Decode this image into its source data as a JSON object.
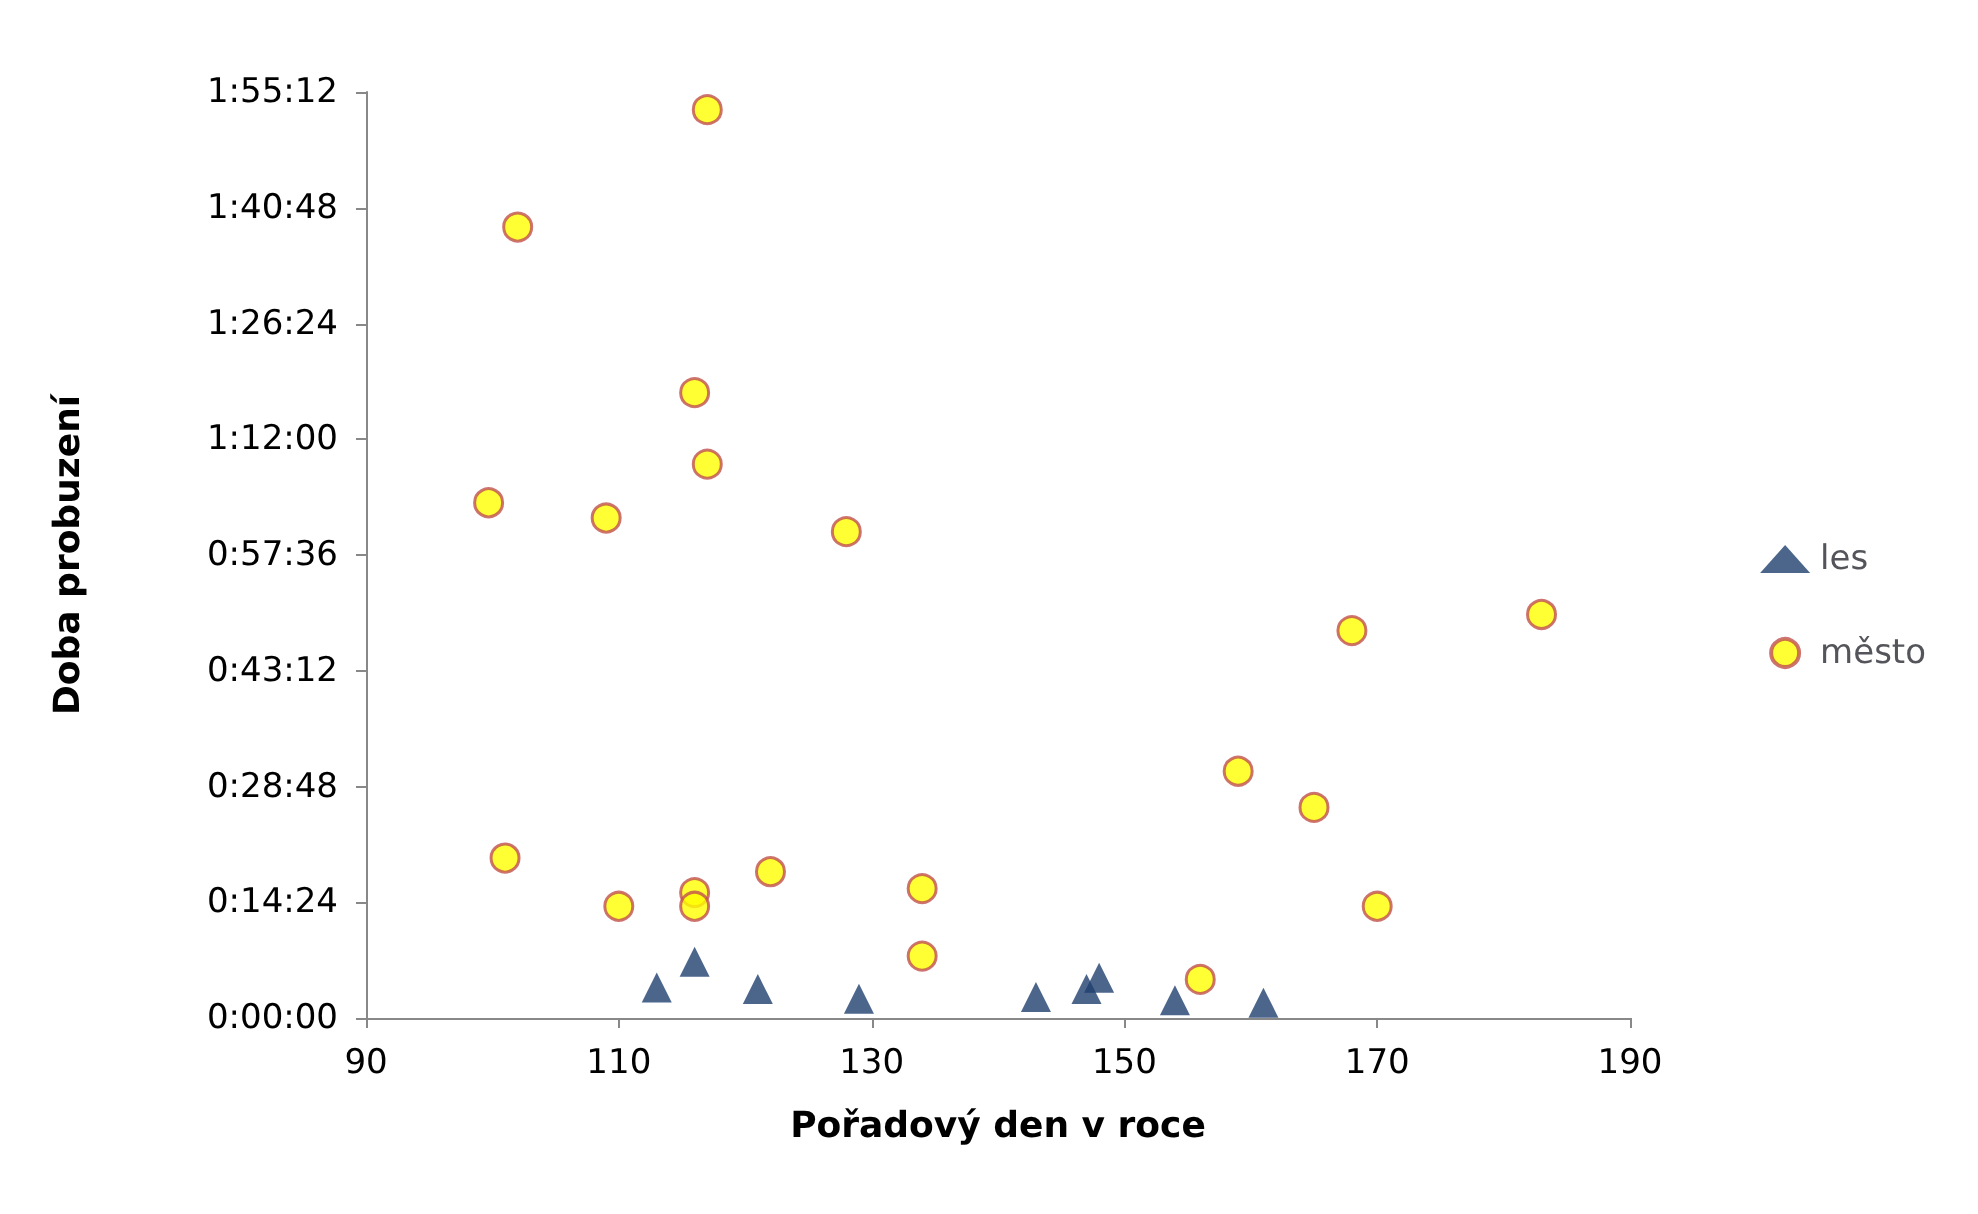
{
  "chart_data": {
    "type": "scatter",
    "xlabel": "Pořadový den v roce",
    "ylabel": "Doba probuzení",
    "xlim": [
      90,
      190
    ],
    "xticks": [
      90,
      110,
      130,
      150,
      170,
      190
    ],
    "ylim": [
      0,
      115.2
    ],
    "yticks": [
      {
        "value": 0,
        "label": "0:00:00"
      },
      {
        "value": 14.4,
        "label": "0:14:24"
      },
      {
        "value": 28.8,
        "label": "0:28:48"
      },
      {
        "value": 43.2,
        "label": "0:43:12"
      },
      {
        "value": 57.6,
        "label": "0:57:36"
      },
      {
        "value": 72,
        "label": "1:12:00"
      },
      {
        "value": 86.4,
        "label": "1:26:24"
      },
      {
        "value": 100.8,
        "label": "1:40:48"
      },
      {
        "value": 115.2,
        "label": "1:55:12"
      }
    ],
    "grid": false,
    "legend": "right",
    "series": [
      {
        "name": "les",
        "color": "#1f3f6e",
        "marker": "triangle",
        "x": [
          113,
          116,
          121,
          129,
          143,
          147,
          148,
          154,
          161
        ],
        "values": [
          3.8,
          7.0,
          3.6,
          2.4,
          2.6,
          3.6,
          5.0,
          2.2,
          1.9
        ]
      },
      {
        "name": "město",
        "color": "#ffff00",
        "marker": "circle",
        "x": [
          117,
          102,
          116,
          117,
          99.7,
          109,
          128,
          168,
          183,
          159,
          165,
          101,
          110,
          116,
          116,
          122,
          134,
          134,
          170,
          156
        ],
        "values": [
          113.0,
          98.4,
          77.8,
          68.9,
          64.1,
          62.2,
          60.5,
          48.2,
          50.2,
          30.7,
          26.2,
          19.9,
          13.9,
          15.6,
          13.9,
          18.2,
          16.1,
          7.7,
          13.9,
          4.8
        ]
      }
    ]
  }
}
